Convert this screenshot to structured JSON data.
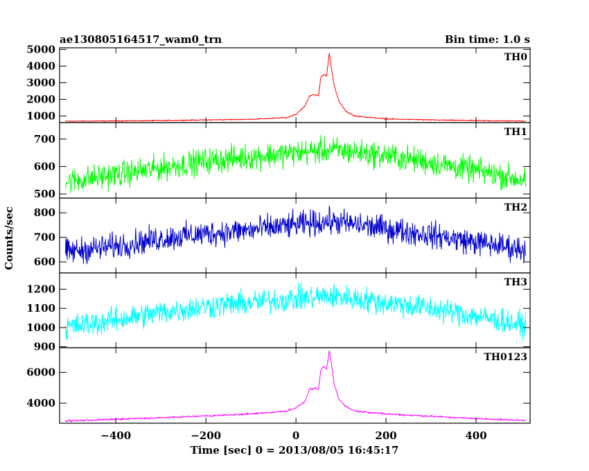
{
  "header": {
    "title": "ae130805164517_wam0_trn",
    "bin_time": "Bin time: 1.0 s"
  },
  "chart_data": {
    "type": "line",
    "x_label": "Time [sec] 0 = 2013/08/05 16:45:17",
    "y_label": "Counts/sec",
    "x_range": [
      -525,
      520
    ],
    "x_ticks": [
      -400,
      -200,
      0,
      200,
      400
    ],
    "x_tick_labels": [
      "−400",
      "−200",
      "0",
      "200",
      "400"
    ],
    "x_data_start": -512,
    "x_data_end": 510,
    "grid": false,
    "panels": [
      {
        "label": "TH0",
        "color": "#ff0000",
        "y_range": [
          600,
          5100
        ],
        "y_ticks": [
          1000,
          2000,
          3000,
          4000,
          5000
        ],
        "y_tick_labels": [
          "1000",
          "2000",
          "3000",
          "4000",
          "5000"
        ],
        "noise": 25,
        "profile": [
          [
            -512,
            680
          ],
          [
            -300,
            720
          ],
          [
            -100,
            800
          ],
          [
            -20,
            900
          ],
          [
            0,
            1100
          ],
          [
            20,
            1600
          ],
          [
            30,
            2200
          ],
          [
            40,
            2300
          ],
          [
            50,
            2200
          ],
          [
            55,
            3300
          ],
          [
            62,
            3500
          ],
          [
            68,
            3400
          ],
          [
            74,
            4800
          ],
          [
            78,
            4000
          ],
          [
            85,
            2800
          ],
          [
            95,
            1900
          ],
          [
            110,
            1300
          ],
          [
            130,
            1000
          ],
          [
            200,
            820
          ],
          [
            300,
            760
          ],
          [
            400,
            720
          ],
          [
            510,
            690
          ]
        ]
      },
      {
        "label": "TH1",
        "color": "#00ff00",
        "y_range": [
          485,
          760
        ],
        "y_ticks": [
          500,
          600,
          700
        ],
        "y_tick_labels": [
          "500",
          "600",
          "700"
        ],
        "noise": 40,
        "profile": [
          [
            -512,
            545
          ],
          [
            -400,
            570
          ],
          [
            -300,
            595
          ],
          [
            -200,
            620
          ],
          [
            -100,
            635
          ],
          [
            0,
            650
          ],
          [
            75,
            660
          ],
          [
            100,
            658
          ],
          [
            200,
            640
          ],
          [
            300,
            615
          ],
          [
            400,
            585
          ],
          [
            510,
            550
          ]
        ]
      },
      {
        "label": "TH2",
        "color": "#0000cc",
        "y_range": [
          555,
          860
        ],
        "y_ticks": [
          600,
          700,
          800
        ],
        "y_tick_labels": [
          "600",
          "700",
          "800"
        ],
        "noise": 45,
        "profile": [
          [
            -512,
            640
          ],
          [
            -400,
            665
          ],
          [
            -300,
            695
          ],
          [
            -200,
            715
          ],
          [
            -100,
            730
          ],
          [
            0,
            750
          ],
          [
            75,
            765
          ],
          [
            100,
            760
          ],
          [
            200,
            735
          ],
          [
            300,
            710
          ],
          [
            400,
            680
          ],
          [
            510,
            650
          ]
        ]
      },
      {
        "label": "TH3",
        "color": "#00ffff",
        "y_range": [
          895,
          1285
        ],
        "y_ticks": [
          900,
          1000,
          1100,
          1200
        ],
        "y_tick_labels": [
          "900",
          "1000",
          "1100",
          "1200"
        ],
        "noise": 55,
        "profile": [
          [
            -512,
            1000
          ],
          [
            -400,
            1040
          ],
          [
            -300,
            1080
          ],
          [
            -200,
            1110
          ],
          [
            -100,
            1130
          ],
          [
            0,
            1150
          ],
          [
            75,
            1165
          ],
          [
            100,
            1160
          ],
          [
            200,
            1130
          ],
          [
            300,
            1100
          ],
          [
            400,
            1060
          ],
          [
            510,
            1010
          ]
        ]
      },
      {
        "label": "TH0123",
        "color": "#ff00ff",
        "y_range": [
          2700,
          7600
        ],
        "y_ticks": [
          4000,
          6000
        ],
        "y_tick_labels": [
          "4000",
          "6000"
        ],
        "noise": 45,
        "profile": [
          [
            -512,
            2850
          ],
          [
            -300,
            3050
          ],
          [
            -100,
            3300
          ],
          [
            -20,
            3500
          ],
          [
            0,
            3700
          ],
          [
            20,
            4100
          ],
          [
            30,
            4900
          ],
          [
            40,
            4950
          ],
          [
            50,
            4900
          ],
          [
            55,
            6100
          ],
          [
            62,
            6400
          ],
          [
            68,
            6200
          ],
          [
            74,
            7400
          ],
          [
            78,
            6700
          ],
          [
            85,
            5200
          ],
          [
            95,
            4300
          ],
          [
            110,
            3800
          ],
          [
            130,
            3500
          ],
          [
            200,
            3300
          ],
          [
            300,
            3150
          ],
          [
            400,
            3000
          ],
          [
            510,
            2880
          ]
        ]
      }
    ]
  }
}
